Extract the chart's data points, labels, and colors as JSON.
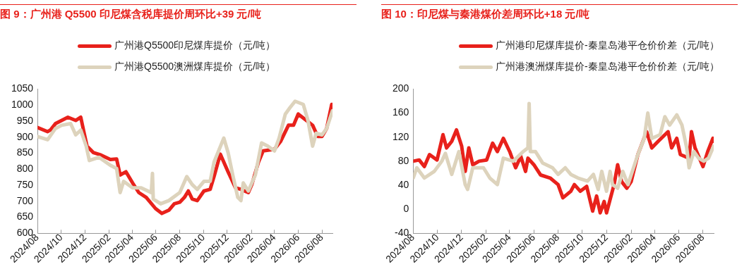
{
  "chart_data": [
    {
      "type": "line",
      "title": "图 9：广州港 Q5500 印尼煤含税库提价周环比+39 元/吨",
      "legend": "top",
      "xlim": [
        "2024-08-01",
        "2026-08-28"
      ],
      "ylim": [
        600,
        1050
      ],
      "yticks": [
        600,
        650,
        700,
        750,
        800,
        850,
        900,
        950,
        1000,
        1050
      ],
      "xticks": [
        {
          "value": "2024-08-01",
          "label": "2024/08"
        },
        {
          "value": "2024-10-01",
          "label": "2024/10"
        },
        {
          "value": "2024-12-01",
          "label": "2024/12"
        },
        {
          "value": "2025-02-01",
          "label": "2025/02"
        },
        {
          "value": "2025-04-01",
          "label": "2025/04"
        },
        {
          "value": "2025-06-01",
          "label": "2025/06"
        },
        {
          "value": "2025-08-01",
          "label": "2025/08"
        },
        {
          "value": "2025-10-01",
          "label": "2025/10"
        },
        {
          "value": "2025-12-01",
          "label": "2025/12"
        },
        {
          "value": "2026-02-01",
          "label": "2026/02"
        },
        {
          "value": "2026-04-01",
          "label": "2026/04"
        },
        {
          "value": "2026-06-01",
          "label": "2026/06"
        },
        {
          "value": "2026-08-01",
          "label": "2026/08"
        }
      ],
      "series": [
        {
          "name": "广州港Q5500印尼煤库提价（元/吨）",
          "color": "#e8211b",
          "x": [
            "2024-08-01",
            "2024-08-27",
            "2024-09-03",
            "2024-09-16",
            "2024-10-02",
            "2024-10-18",
            "2024-11-07",
            "2024-11-20",
            "2024-11-27",
            "2024-12-06",
            "2024-12-22",
            "2025-01-11",
            "2025-02-04",
            "2025-02-20",
            "2025-03-01",
            "2025-03-16",
            "2025-04-02",
            "2025-04-18",
            "2025-05-07",
            "2025-05-31",
            "2025-06-16",
            "2025-07-04",
            "2025-07-18",
            "2025-08-01",
            "2025-08-13",
            "2025-08-23",
            "2025-09-02",
            "2025-09-15",
            "2025-10-02",
            "2025-10-18",
            "2025-10-28",
            "2025-11-13",
            "2025-12-03",
            "2025-12-22",
            "2026-01-05",
            "2026-01-24",
            "2026-02-02",
            "2026-02-19",
            "2026-03-03",
            "2026-04-01",
            "2026-04-17",
            "2026-05-07",
            "2026-05-20",
            "2026-06-01",
            "2026-06-22",
            "2026-07-08",
            "2026-07-21",
            "2026-08-01",
            "2026-08-13",
            "2026-08-26",
            "2026-08-28"
          ],
          "values": [
            930,
            917,
            922,
            942,
            952,
            962,
            952,
            962,
            922,
            872,
            852,
            844,
            830,
            832,
            782,
            792,
            757,
            727,
            712,
            677,
            662,
            672,
            692,
            697,
            712,
            732,
            707,
            702,
            732,
            737,
            777,
            847,
            792,
            742,
            737,
            727,
            752,
            822,
            857,
            862,
            887,
            937,
            937,
            972,
            952,
            937,
            902,
            902,
            927,
            1002,
            987
          ]
        },
        {
          "name": "广州港Q5500澳洲煤库提价（元/吨）",
          "color": "#ddd3bc",
          "x": [
            "2024-08-01",
            "2024-08-27",
            "2024-09-16",
            "2024-10-02",
            "2024-10-25",
            "2024-11-07",
            "2024-11-20",
            "2024-12-04",
            "2024-12-12",
            "2025-01-06",
            "2025-02-04",
            "2025-02-20",
            "2025-03-01",
            "2025-03-10",
            "2025-04-02",
            "2025-04-24",
            "2025-05-20",
            "2025-05-23",
            "2025-05-25",
            "2025-06-13",
            "2025-07-04",
            "2025-08-01",
            "2025-08-19",
            "2025-09-02",
            "2025-09-15",
            "2025-10-02",
            "2025-10-18",
            "2025-10-28",
            "2025-11-22",
            "2025-12-03",
            "2025-12-15",
            "2025-12-28",
            "2026-01-05",
            "2026-01-11",
            "2026-01-24",
            "2026-02-11",
            "2026-02-27",
            "2026-03-15",
            "2026-04-01",
            "2026-04-13",
            "2026-04-29",
            "2026-05-11",
            "2026-05-24",
            "2026-06-14",
            "2026-06-26",
            "2026-07-08",
            "2026-07-17",
            "2026-08-01",
            "2026-08-13",
            "2026-08-28"
          ],
          "values": [
            902,
            892,
            927,
            937,
            942,
            907,
            922,
            872,
            827,
            837,
            812,
            802,
            727,
            762,
            742,
            742,
            727,
            787,
            707,
            692,
            702,
            727,
            777,
            752,
            737,
            762,
            762,
            822,
            897,
            852,
            782,
            712,
            702,
            757,
            732,
            782,
            882,
            872,
            857,
            897,
            972,
            992,
            1012,
            1002,
            952,
            872,
            912,
            907,
            927,
            982
          ]
        }
      ]
    },
    {
      "type": "line",
      "title": "图 10：印尼煤与秦港煤价差周环比+18 元/吨",
      "legend": "top",
      "xlim": [
        "2024-08-01",
        "2026-08-28"
      ],
      "ylim": [
        -40,
        200
      ],
      "yticks": [
        -40,
        0,
        40,
        80,
        120,
        160,
        200
      ],
      "xticks": [
        {
          "value": "2024-08-01",
          "label": "2024/08"
        },
        {
          "value": "2024-10-01",
          "label": "2024/10"
        },
        {
          "value": "2024-12-01",
          "label": "2024/12"
        },
        {
          "value": "2025-02-01",
          "label": "2025/02"
        },
        {
          "value": "2025-04-01",
          "label": "2025/04"
        },
        {
          "value": "2025-06-01",
          "label": "2025/06"
        },
        {
          "value": "2025-08-01",
          "label": "2025/08"
        },
        {
          "value": "2025-10-01",
          "label": "2025/10"
        },
        {
          "value": "2025-12-01",
          "label": "2025/12"
        },
        {
          "value": "2026-02-01",
          "label": "2026/02"
        },
        {
          "value": "2026-04-01",
          "label": "2026/04"
        },
        {
          "value": "2026-06-01",
          "label": "2026/06"
        },
        {
          "value": "2026-08-01",
          "label": "2026/08"
        }
      ],
      "series": [
        {
          "name": "广州港印尼煤库提价-秦皇岛港平仓价价差（元/吨）",
          "color": "#e8211b",
          "x": [
            "2024-08-01",
            "2024-08-16",
            "2024-08-29",
            "2024-09-11",
            "2024-09-30",
            "2024-10-15",
            "2024-10-24",
            "2024-11-06",
            "2024-11-18",
            "2024-12-01",
            "2024-12-10",
            "2024-12-19",
            "2024-12-29",
            "2025-01-14",
            "2025-02-02",
            "2025-02-17",
            "2025-03-01",
            "2025-03-16",
            "2025-04-01",
            "2025-04-16",
            "2025-04-29",
            "2025-05-11",
            "2025-05-17",
            "2025-06-01",
            "2025-06-18",
            "2025-07-12",
            "2025-08-01",
            "2025-08-13",
            "2025-09-02",
            "2025-09-11",
            "2025-09-26",
            "2025-10-12",
            "2025-10-27",
            "2025-11-06",
            "2025-11-15",
            "2025-11-25",
            "2025-12-01",
            "2025-12-20",
            "2025-12-29",
            "2026-01-08",
            "2026-01-21",
            "2026-02-01",
            "2026-02-18",
            "2026-03-12",
            "2026-03-25",
            "2026-04-10",
            "2026-05-05",
            "2026-05-14",
            "2026-05-27",
            "2026-06-05",
            "2026-06-27",
            "2026-07-03",
            "2026-07-12",
            "2026-08-01",
            "2026-08-13",
            "2026-08-26",
            "2026-08-28"
          ],
          "values": [
            80,
            82,
            71,
            91,
            82,
            124,
            102,
            113,
            132,
            105,
            63,
            102,
            74,
            80,
            82,
            110,
            96,
            118,
            96,
            69,
            88,
            63,
            85,
            74,
            57,
            52,
            41,
            19,
            30,
            41,
            30,
            38,
            -3,
            22,
            -6,
            13,
            -6,
            41,
            74,
            46,
            35,
            46,
            91,
            129,
            102,
            113,
            129,
            102,
            118,
            91,
            85,
            129,
            102,
            71,
            96,
            118,
            113
          ]
        },
        {
          "name": "广州港澳洲煤库提价-秦皇岛港平仓价价差（元/吨）",
          "color": "#ddd3bc",
          "x": [
            "2024-08-01",
            "2024-08-10",
            "2024-08-29",
            "2024-09-23",
            "2024-10-12",
            "2024-10-21",
            "2024-11-06",
            "2024-11-24",
            "2024-12-10",
            "2024-12-16",
            "2024-12-29",
            "2025-01-25",
            "2025-02-10",
            "2025-03-01",
            "2025-03-16",
            "2025-04-10",
            "2025-05-05",
            "2025-05-17",
            "2025-05-20",
            "2025-05-23",
            "2025-06-05",
            "2025-06-23",
            "2025-07-18",
            "2025-08-01",
            "2025-08-19",
            "2025-09-02",
            "2025-09-20",
            "2025-10-14",
            "2025-10-29",
            "2025-11-10",
            "2025-11-19",
            "2025-12-01",
            "2025-12-10",
            "2025-12-16",
            "2025-12-29",
            "2026-01-11",
            "2026-01-24",
            "2026-02-18",
            "2026-03-06",
            "2026-03-15",
            "2026-03-25",
            "2026-04-15",
            "2026-04-27",
            "2026-05-09",
            "2026-05-27",
            "2026-06-09",
            "2026-06-21",
            "2026-06-27",
            "2026-07-09",
            "2026-07-21",
            "2026-08-03",
            "2026-08-15",
            "2026-08-28"
          ],
          "values": [
            52,
            69,
            52,
            63,
            80,
            93,
            58,
            96,
            41,
            33,
            69,
            69,
            52,
            41,
            85,
            80,
            96,
            102,
            176,
            96,
            96,
            77,
            69,
            58,
            69,
            58,
            52,
            47,
            58,
            33,
            63,
            30,
            63,
            41,
            35,
            63,
            41,
            91,
            118,
            160,
            118,
            124,
            154,
            140,
            157,
            140,
            102,
            69,
            96,
            85,
            80,
            85,
            105
          ]
        }
      ]
    }
  ]
}
